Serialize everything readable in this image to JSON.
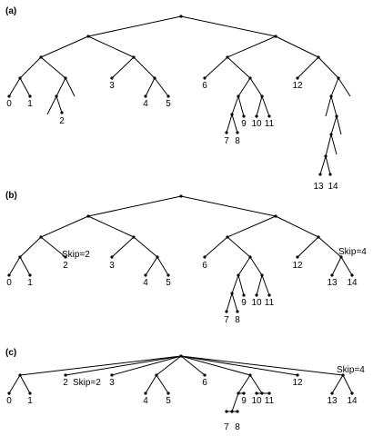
{
  "panels": [
    {
      "label": "(a)",
      "leaves": [
        "0",
        "1",
        "2",
        "3",
        "4",
        "5",
        "6",
        "7",
        "8",
        "9",
        "10",
        "11",
        "12",
        "13",
        "14"
      ]
    },
    {
      "label": "(b)",
      "leaves": [
        "0",
        "1",
        "2",
        "3",
        "4",
        "5",
        "6",
        "7",
        "8",
        "9",
        "10",
        "11",
        "12",
        "13",
        "14"
      ],
      "annotations": [
        "Skip=2",
        "Skip=4"
      ]
    },
    {
      "label": "(c)",
      "leaves": [
        "0",
        "1",
        "2",
        "3",
        "4",
        "5",
        "6",
        "7",
        "8",
        "9",
        "10",
        "11",
        "12",
        "13",
        "14"
      ],
      "annotations": [
        "Skip=2",
        "Skip=4"
      ]
    }
  ]
}
